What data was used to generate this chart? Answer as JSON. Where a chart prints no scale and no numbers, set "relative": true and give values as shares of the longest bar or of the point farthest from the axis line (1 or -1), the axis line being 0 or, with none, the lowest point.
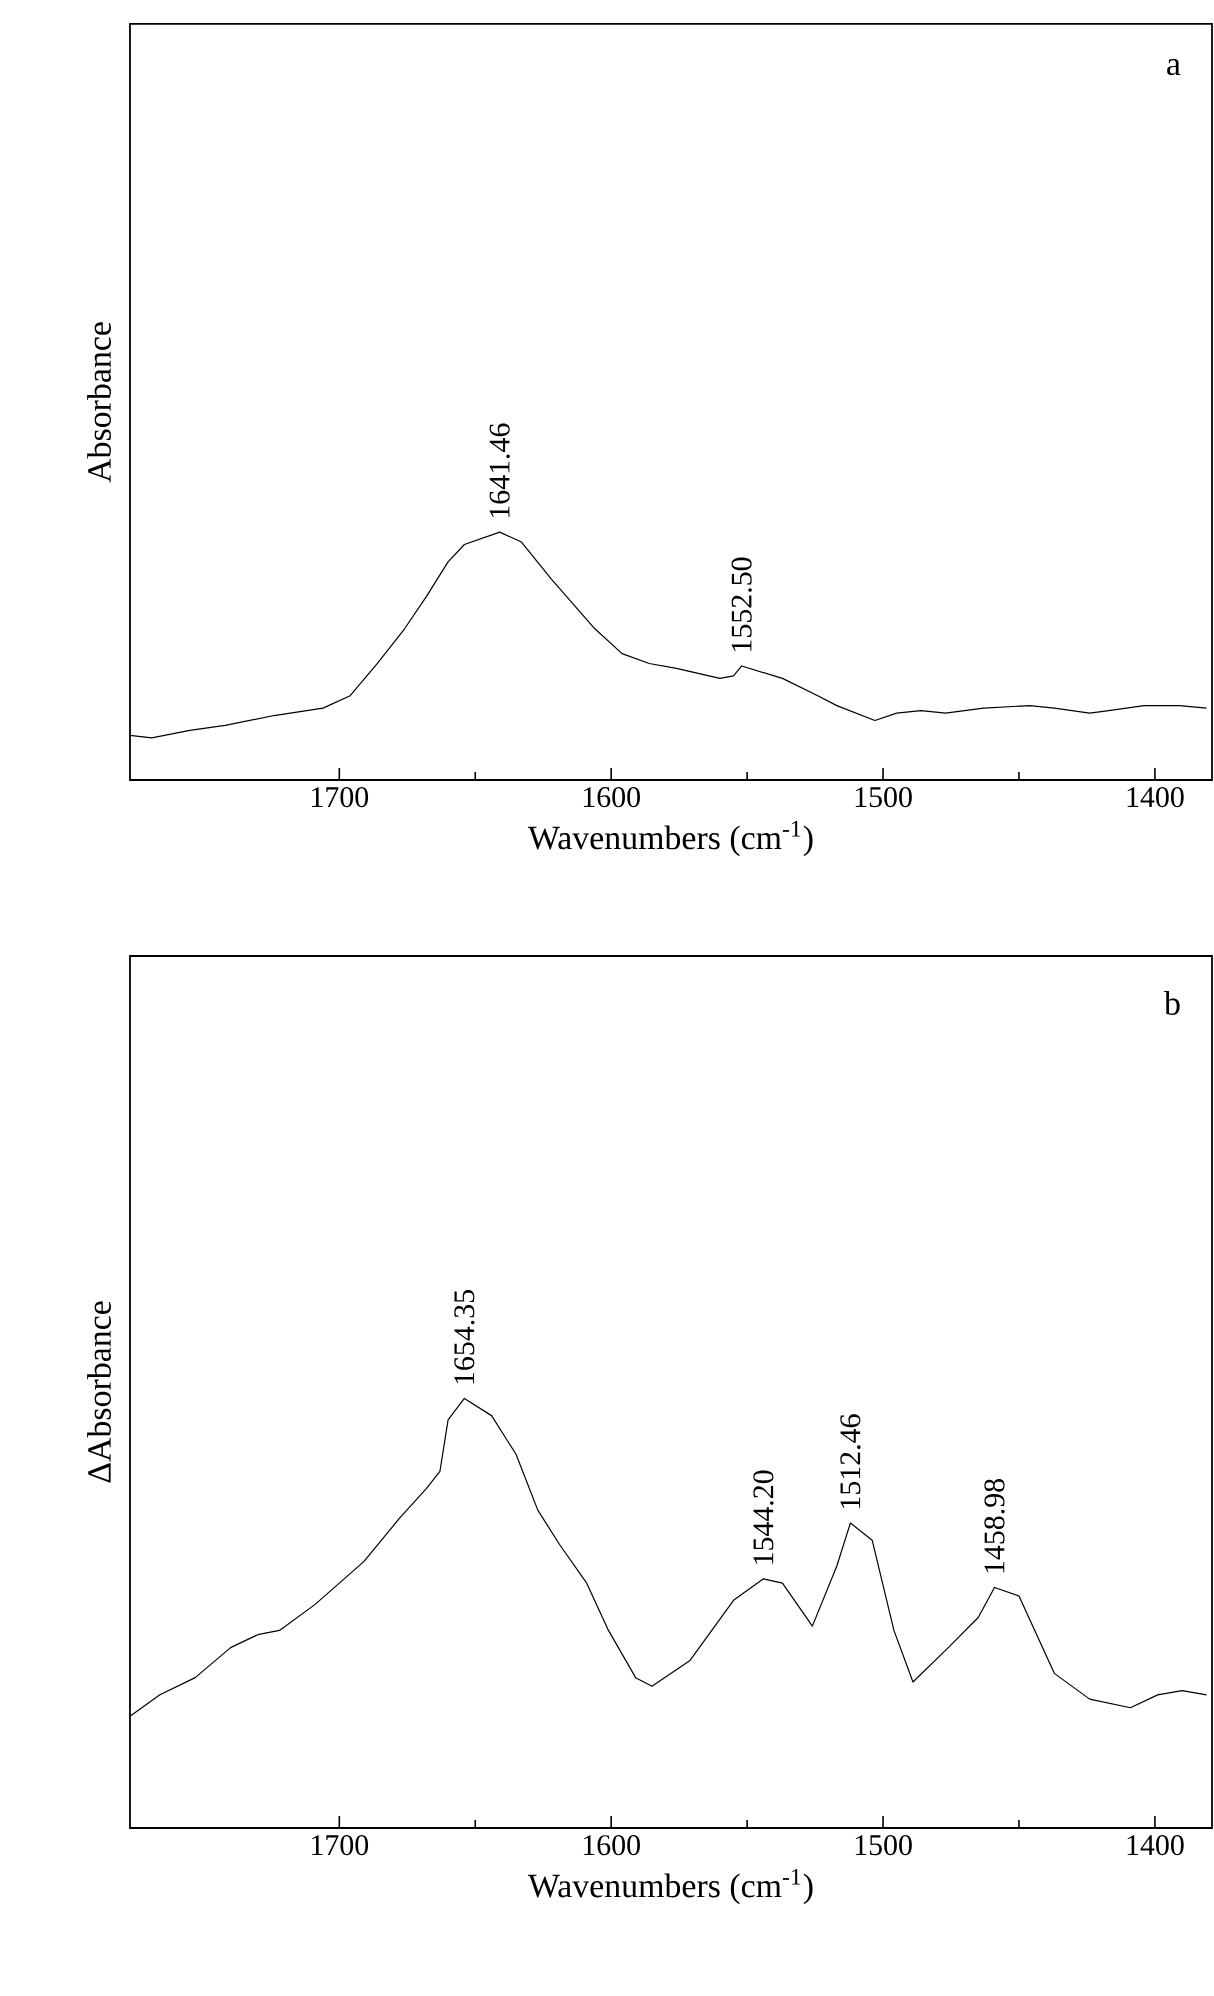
{
  "chart_data": [
    {
      "type": "line",
      "relative": true,
      "xlabel": "Wavenumbers (cm$^{-1}$)",
      "ylabel": "Absorbance",
      "xlim": [
        1777,
        1379
      ],
      "xticks": [
        1700,
        1600,
        1500,
        1400
      ],
      "marker": "none",
      "line_style": "solid",
      "annotations": [
        "a",
        {
          "text": "1641.46",
          "x": 1641,
          "y": 1.0
        },
        {
          "text": "1552.50",
          "x": 1552,
          "y": 0.46
        }
      ],
      "series": [
        {
          "color": "#000000",
          "x": [
            1777,
            1769,
            1755,
            1742,
            1724,
            1706,
            1696,
            1686,
            1676,
            1668,
            1660,
            1654,
            1641,
            1633,
            1622,
            1606,
            1596,
            1586,
            1576,
            1560,
            1555,
            1552,
            1537,
            1524,
            1517,
            1503,
            1495,
            1486,
            1477,
            1463,
            1446,
            1437,
            1424,
            1417,
            1404,
            1391,
            1381
          ],
          "values": [
            0.18,
            0.17,
            0.2,
            0.22,
            0.26,
            0.29,
            0.34,
            0.47,
            0.61,
            0.74,
            0.88,
            0.95,
            1.0,
            0.96,
            0.81,
            0.61,
            0.51,
            0.47,
            0.45,
            0.41,
            0.42,
            0.46,
            0.41,
            0.34,
            0.3,
            0.24,
            0.27,
            0.28,
            0.27,
            0.29,
            0.3,
            0.29,
            0.27,
            0.28,
            0.3,
            0.3,
            0.29
          ]
        }
      ]
    },
    {
      "type": "line",
      "relative": true,
      "xlabel": "Wavenumbers (cm$^{-1}$)",
      "ylabel": "ΔAbsorbance",
      "xlim": [
        1777,
        1379
      ],
      "xticks": [
        1700,
        1600,
        1500,
        1400
      ],
      "marker": "none",
      "line_style": "solid",
      "annotations": [
        "b",
        {
          "text": "1654.35",
          "x": 1654,
          "y": 1.0
        },
        {
          "text": "1544.20",
          "x": 1544,
          "y": 0.58
        },
        {
          "text": "1512.46",
          "x": 1512,
          "y": 0.71
        },
        {
          "text": "1458.98",
          "x": 1459,
          "y": 0.56
        }
      ],
      "series": [
        {
          "color": "#000000",
          "x": [
            1777,
            1766,
            1753,
            1740,
            1730,
            1722,
            1709,
            1691,
            1678,
            1668,
            1663,
            1660,
            1654,
            1644,
            1635,
            1627,
            1619,
            1609,
            1601,
            1591,
            1585,
            1571,
            1555,
            1544,
            1537,
            1526,
            1517,
            1512,
            1504,
            1496,
            1489,
            1476,
            1465,
            1459,
            1450,
            1437,
            1424,
            1409,
            1399,
            1390,
            1381
          ],
          "values": [
            0.26,
            0.31,
            0.35,
            0.42,
            0.45,
            0.46,
            0.52,
            0.62,
            0.72,
            0.79,
            0.83,
            0.95,
            1.0,
            0.96,
            0.87,
            0.74,
            0.66,
            0.57,
            0.46,
            0.35,
            0.33,
            0.39,
            0.53,
            0.58,
            0.57,
            0.47,
            0.61,
            0.71,
            0.67,
            0.46,
            0.34,
            0.42,
            0.49,
            0.56,
            0.54,
            0.36,
            0.3,
            0.28,
            0.31,
            0.32,
            0.31
          ]
        }
      ]
    }
  ]
}
